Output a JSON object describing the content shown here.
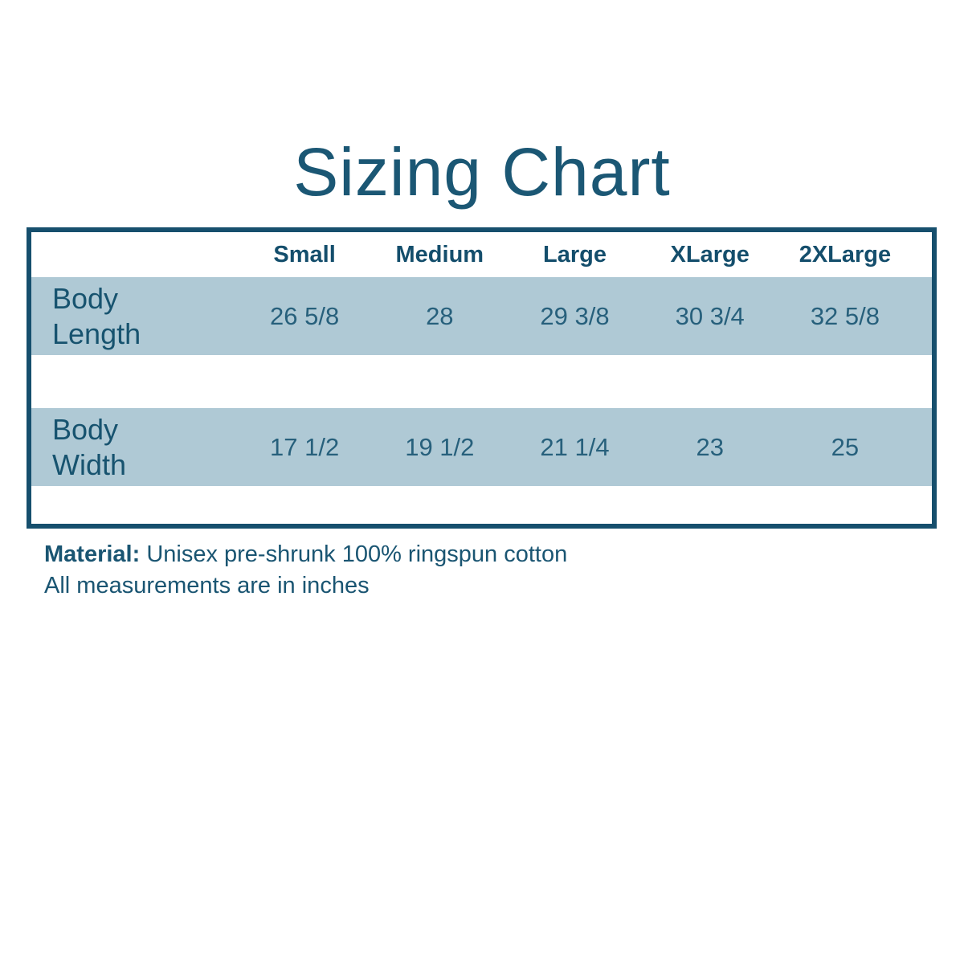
{
  "page": {
    "background": "#ffffff"
  },
  "colors": {
    "teal_text": "#1B5774",
    "header_text": "#144E6C",
    "value_text": "#27607C",
    "table_border": "#164F6D",
    "row_blue": "#AFC9D5"
  },
  "chart_data": {
    "type": "table",
    "title": "Sizing Chart",
    "columns": [
      "",
      "Small",
      "Medium",
      "Large",
      "XLarge",
      "2XLarge"
    ],
    "rows": [
      [
        "Body Length",
        "26 5/8",
        "28",
        "29 3/8",
        "30 3/4",
        "32 5/8"
      ],
      [
        "Body Width",
        "17 1/2",
        "19 1/2",
        "21 1/4",
        "23",
        "25"
      ]
    ],
    "units": "inches",
    "notes": [
      "Material: Unisex pre-shrunk 100% ringspun cotton",
      "All measurements are in inches"
    ]
  },
  "footer": {
    "material_label": "Material:",
    "material_value": " Unisex pre-shrunk 100% ringspun cotton",
    "note": "All measurements are in inches"
  }
}
